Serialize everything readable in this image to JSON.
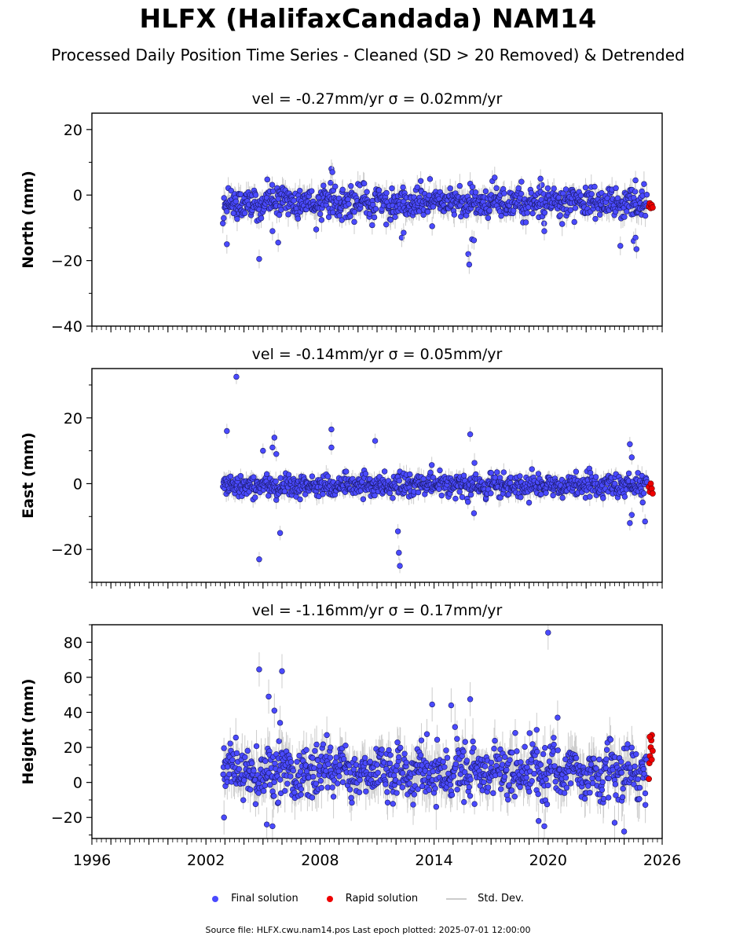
{
  "title": "HLFX (HalifaxCandada) NAM14",
  "subtitle": "Processed Daily Position Time Series - Cleaned (SD > 20 Removed) & Detrended",
  "legend": {
    "final": "Final solution",
    "rapid": "Rapid solution",
    "std": "Std. Dev."
  },
  "footer": "Source file: HLFX.cwu.nam14.pos  Last epoch plotted: 2025-07-01 12:00:00",
  "colors": {
    "final": "#4a4aff",
    "rapid": "#ee0000",
    "std": "#cccccc",
    "edge": "#000000"
  },
  "chart_data": [
    {
      "type": "scatter",
      "component": "north",
      "title": "vel = -0.27mm/yr   σ = 0.02mm/yr",
      "ylabel": "North (mm)",
      "xlim": [
        1996,
        2026
      ],
      "ylim": [
        -40,
        25
      ],
      "yticks": [
        -40,
        -20,
        0,
        20
      ],
      "data_span": [
        2002.9,
        2025.2
      ],
      "noise_sd": 2.2,
      "outliers": [
        [
          2003.1,
          -15
        ],
        [
          2004.8,
          -19.5
        ],
        [
          2005.5,
          -11
        ],
        [
          2005.8,
          -14.5
        ],
        [
          2008.6,
          8
        ],
        [
          2008.65,
          7
        ],
        [
          2007.8,
          -10.5
        ],
        [
          2012.3,
          -13
        ],
        [
          2012.4,
          -11.5
        ],
        [
          2013.9,
          -9.5
        ],
        [
          2015.8,
          -18
        ],
        [
          2015.85,
          -21.2
        ],
        [
          2016.0,
          -13.5
        ],
        [
          2016.1,
          -13.8
        ],
        [
          2019.6,
          5
        ],
        [
          2019.8,
          -11
        ],
        [
          2023.8,
          -15.5
        ],
        [
          2024.5,
          -14
        ],
        [
          2024.6,
          -13
        ],
        [
          2024.65,
          -16.5
        ],
        [
          2024.6,
          4.5
        ]
      ],
      "rapid": {
        "x": [
          2025.3,
          2025.35,
          2025.4,
          2025.45,
          2025.5
        ],
        "y": [
          -3.5,
          -2.5,
          -4,
          -3,
          -3.8
        ]
      }
    },
    {
      "type": "scatter",
      "component": "east",
      "title": "vel = -0.14mm/yr   σ = 0.05mm/yr",
      "ylabel": "East (mm)",
      "xlim": [
        1996,
        2026
      ],
      "ylim": [
        -30,
        35
      ],
      "yticks": [
        -20,
        0,
        20
      ],
      "data_span": [
        2002.9,
        2025.2
      ],
      "noise_sd": 1.7,
      "outliers": [
        [
          2003.1,
          16
        ],
        [
          2003.6,
          32.5
        ],
        [
          2004.8,
          -23
        ],
        [
          2005.0,
          10
        ],
        [
          2005.6,
          14
        ],
        [
          2005.5,
          11
        ],
        [
          2005.7,
          9
        ],
        [
          2005.9,
          -15
        ],
        [
          2008.6,
          16.5
        ],
        [
          2008.6,
          11
        ],
        [
          2010.9,
          13
        ],
        [
          2012.1,
          -14.5
        ],
        [
          2012.15,
          -21
        ],
        [
          2012.2,
          -25
        ],
        [
          2015.9,
          15
        ],
        [
          2016.1,
          -9
        ],
        [
          2024.3,
          12
        ],
        [
          2024.4,
          8
        ],
        [
          2024.4,
          -9.5
        ],
        [
          2024.3,
          -12
        ],
        [
          2025.1,
          -11.5
        ]
      ],
      "rapid": {
        "x": [
          2025.3,
          2025.35,
          2025.4,
          2025.45,
          2025.5
        ],
        "y": [
          -1,
          -2.5,
          0,
          -1.5,
          -3
        ]
      }
    },
    {
      "type": "scatter",
      "component": "height",
      "title": "vel = -1.16mm/yr   σ = 0.17mm/yr",
      "ylabel": "Height (mm)",
      "xlim": [
        1996,
        2026
      ],
      "ylim": [
        -32,
        90
      ],
      "yticks": [
        -20,
        0,
        20,
        40,
        60,
        80
      ],
      "xticks": [
        1996,
        2002,
        2008,
        2014,
        2020,
        2026
      ],
      "data_span": [
        2002.9,
        2025.2
      ],
      "noise_sd": 7.5,
      "outliers": [
        [
          2004.8,
          64.5
        ],
        [
          2005.3,
          49
        ],
        [
          2005.6,
          41
        ],
        [
          2006.0,
          63.5
        ],
        [
          2005.9,
          34
        ],
        [
          2005.2,
          -24
        ],
        [
          2005.5,
          -25
        ],
        [
          2013.9,
          44.5
        ],
        [
          2014.9,
          44
        ],
        [
          2015.9,
          47.5
        ],
        [
          2020.0,
          85.5
        ],
        [
          2020.5,
          37
        ],
        [
          2019.4,
          30
        ],
        [
          2019.8,
          -25
        ],
        [
          2019.5,
          -22
        ],
        [
          2024.0,
          -28
        ],
        [
          2023.5,
          -23
        ],
        [
          2002.95,
          -20
        ]
      ],
      "rapid": {
        "x": [
          2025.3,
          2025.33,
          2025.36,
          2025.4,
          2025.43,
          2025.46,
          2025.5,
          2025.35,
          2025.45
        ],
        "y": [
          2,
          11,
          15,
          20,
          24,
          27,
          18,
          26,
          13
        ]
      }
    }
  ]
}
